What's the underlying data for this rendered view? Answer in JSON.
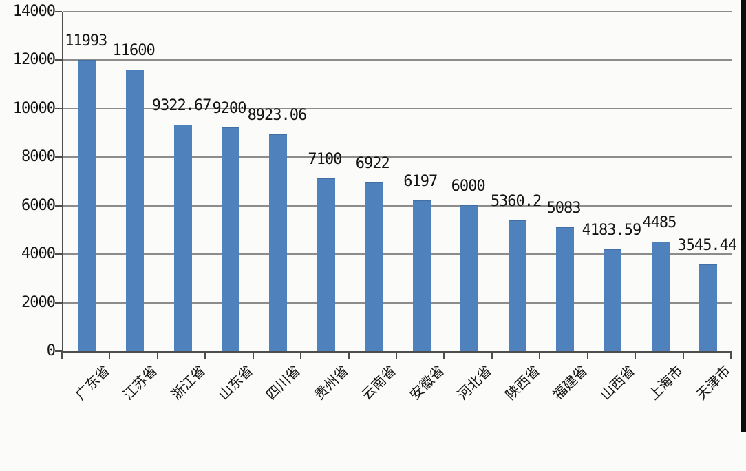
{
  "chart_data": {
    "type": "bar",
    "title": "",
    "xlabel": "",
    "ylabel": "",
    "categories": [
      "广东省",
      "江苏省",
      "浙江省",
      "山东省",
      "四川省",
      "贵州省",
      "云南省",
      "安徽省",
      "河北省",
      "陕西省",
      "福建省",
      "山西省",
      "上海市",
      "天津市"
    ],
    "values": [
      11993,
      11600,
      9322.67,
      9200,
      8923.06,
      7100,
      6922,
      6197,
      6000,
      5360.2,
      5083,
      4183.59,
      4485,
      3545.44
    ],
    "value_labels": [
      "11993",
      "11600",
      "9322.67",
      "9200",
      "8923.06",
      "7100",
      "6922",
      "6197",
      "6000",
      "5360.2",
      "5083",
      "4183.59",
      "4485",
      "3545.44"
    ],
    "ylim": [
      0,
      14000
    ],
    "y_ticks": [
      0,
      2000,
      4000,
      6000,
      8000,
      10000,
      12000,
      14000
    ],
    "y_tick_labels": [
      "0",
      "2000",
      "4000",
      "6000",
      "8000",
      "10000",
      "12000",
      "14000"
    ],
    "grid": true,
    "legend": false,
    "colors": {
      "bar_fill": "#4f81bd",
      "bar_border": "#446fa4",
      "gridline": "#8c8c8c",
      "axis": "#4d4d4d",
      "text": "#141414",
      "background": "#fbfbf9",
      "edge_strip": "#0c0c0c"
    }
  }
}
